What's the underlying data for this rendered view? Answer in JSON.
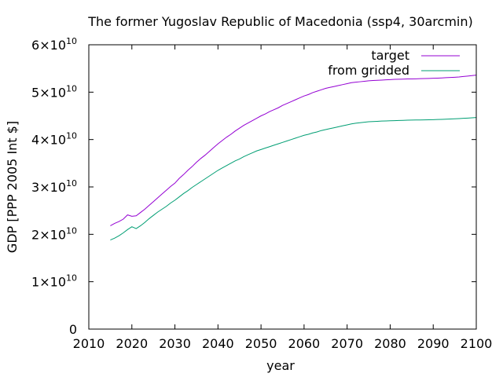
{
  "chart_data": {
    "type": "line",
    "title": "The former Yugoslav Republic of Macedonia (ssp4, 30arcmin)",
    "xlabel": "year",
    "ylabel": "GDP [PPP 2005 Int $]",
    "xlim": [
      2010,
      2100
    ],
    "ylim": [
      0,
      60000000000
    ],
    "grid": false,
    "legend": "top-right",
    "x_ticks": [
      {
        "value": 2010,
        "label": "2010"
      },
      {
        "value": 2020,
        "label": "2020"
      },
      {
        "value": 2030,
        "label": "2030"
      },
      {
        "value": 2040,
        "label": "2040"
      },
      {
        "value": 2050,
        "label": "2050"
      },
      {
        "value": 2060,
        "label": "2060"
      },
      {
        "value": 2070,
        "label": "2070"
      },
      {
        "value": 2080,
        "label": "2080"
      },
      {
        "value": 2090,
        "label": "2090"
      },
      {
        "value": 2100,
        "label": "2100"
      }
    ],
    "y_ticks": [
      {
        "value": 0,
        "mant": "0",
        "exp": ""
      },
      {
        "value": 10000000000,
        "mant": "1×10",
        "exp": "10"
      },
      {
        "value": 20000000000,
        "mant": "2×10",
        "exp": "10"
      },
      {
        "value": 30000000000,
        "mant": "3×10",
        "exp": "10"
      },
      {
        "value": 40000000000,
        "mant": "4×10",
        "exp": "10"
      },
      {
        "value": 50000000000,
        "mant": "5×10",
        "exp": "10"
      },
      {
        "value": 60000000000,
        "mant": "6×10",
        "exp": "10"
      }
    ],
    "x": [
      2015,
      2016,
      2017,
      2018,
      2019,
      2020,
      2021,
      2022,
      2023,
      2024,
      2025,
      2026,
      2027,
      2028,
      2029,
      2030,
      2031,
      2032,
      2033,
      2034,
      2035,
      2036,
      2037,
      2038,
      2039,
      2040,
      2041,
      2042,
      2043,
      2044,
      2045,
      2046,
      2047,
      2048,
      2049,
      2050,
      2051,
      2052,
      2053,
      2054,
      2055,
      2056,
      2057,
      2058,
      2059,
      2060,
      2061,
      2062,
      2063,
      2064,
      2065,
      2066,
      2067,
      2068,
      2069,
      2070,
      2071,
      2072,
      2073,
      2074,
      2075,
      2076,
      2077,
      2078,
      2079,
      2080,
      2081,
      2082,
      2083,
      2084,
      2085,
      2086,
      2087,
      2088,
      2089,
      2090,
      2091,
      2092,
      2093,
      2094,
      2095,
      2096,
      2097,
      2098,
      2099,
      2100
    ],
    "series": [
      {
        "name": "target",
        "color": "#9400d3",
        "values": [
          21800000000,
          22300000000,
          22700000000,
          23200000000,
          24100000000,
          23800000000,
          23900000000,
          24600000000,
          25300000000,
          26100000000,
          26900000000,
          27700000000,
          28500000000,
          29300000000,
          30100000000,
          30800000000,
          31800000000,
          32600000000,
          33500000000,
          34300000000,
          35200000000,
          36000000000,
          36700000000,
          37500000000,
          38300000000,
          39100000000,
          39800000000,
          40500000000,
          41100000000,
          41800000000,
          42400000000,
          43000000000,
          43500000000,
          44000000000,
          44500000000,
          45000000000,
          45400000000,
          45900000000,
          46300000000,
          46700000000,
          47200000000,
          47600000000,
          48000000000,
          48400000000,
          48800000000,
          49200000000,
          49500000000,
          49900000000,
          50200000000,
          50500000000,
          50800000000,
          51000000000,
          51200000000,
          51400000000,
          51600000000,
          51800000000,
          52000000000,
          52100000000,
          52200000000,
          52300000000,
          52400000000,
          52450000000,
          52500000000,
          52550000000,
          52600000000,
          52650000000,
          52700000000,
          52720000000,
          52750000000,
          52780000000,
          52800000000,
          52820000000,
          52850000000,
          52870000000,
          52900000000,
          52930000000,
          52960000000,
          53000000000,
          53050000000,
          53100000000,
          53150000000,
          53200000000,
          53300000000,
          53400000000,
          53500000000,
          53600000000
        ]
      },
      {
        "name": "from gridded",
        "color": "#009e73",
        "values": [
          18800000000,
          19200000000,
          19700000000,
          20300000000,
          21000000000,
          21600000000,
          21200000000,
          21800000000,
          22500000000,
          23300000000,
          24000000000,
          24700000000,
          25300000000,
          25900000000,
          26600000000,
          27200000000,
          27900000000,
          28600000000,
          29200000000,
          29900000000,
          30500000000,
          31100000000,
          31700000000,
          32300000000,
          32900000000,
          33500000000,
          34000000000,
          34500000000,
          35000000000,
          35500000000,
          35900000000,
          36400000000,
          36800000000,
          37200000000,
          37600000000,
          37900000000,
          38200000000,
          38500000000,
          38800000000,
          39100000000,
          39400000000,
          39700000000,
          40000000000,
          40300000000,
          40600000000,
          40900000000,
          41100000000,
          41400000000,
          41600000000,
          41900000000,
          42100000000,
          42300000000,
          42500000000,
          42700000000,
          42900000000,
          43100000000,
          43300000000,
          43450000000,
          43550000000,
          43650000000,
          43750000000,
          43800000000,
          43850000000,
          43900000000,
          43930000000,
          43960000000,
          43990000000,
          44020000000,
          44050000000,
          44080000000,
          44100000000,
          44120000000,
          44140000000,
          44160000000,
          44180000000,
          44200000000,
          44230000000,
          44260000000,
          44300000000,
          44340000000,
          44380000000,
          44430000000,
          44480000000,
          44530000000,
          44580000000,
          44650000000
        ]
      }
    ]
  }
}
